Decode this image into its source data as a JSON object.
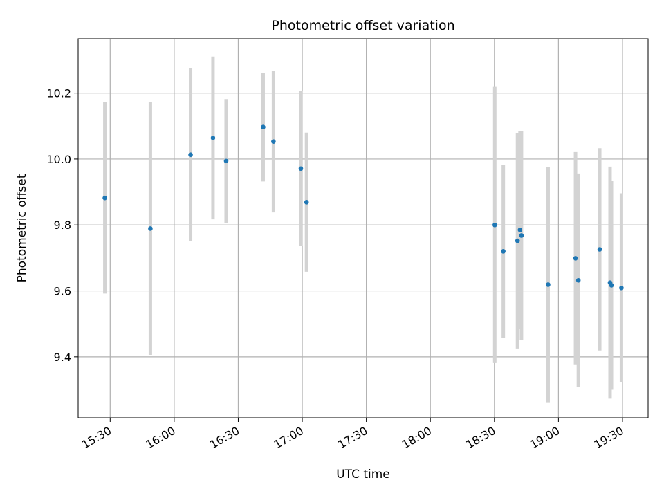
{
  "chart_data": {
    "type": "scatter",
    "title": "Photometric offset variation",
    "xlabel": "UTC time",
    "ylabel": "Photometric offset",
    "xlim": [
      "15:15",
      "19:42"
    ],
    "ylim": [
      9.215,
      10.365
    ],
    "x_ticks": [
      "15:30",
      "16:00",
      "16:30",
      "17:00",
      "17:30",
      "18:00",
      "18:30",
      "19:00",
      "19:30"
    ],
    "y_ticks": [
      9.4,
      9.6,
      9.8,
      10.0,
      10.2
    ],
    "grid": true,
    "colors": {
      "point": "#1f77b4",
      "errorbar": "#d3d3d3",
      "grid": "#b0b0b0"
    },
    "points": [
      {
        "x": "15:27:30",
        "y": 9.882,
        "err": 0.29
      },
      {
        "x": "15:48:50",
        "y": 9.789,
        "err": 0.383
      },
      {
        "x": "16:07:40",
        "y": 10.013,
        "err": 0.262
      },
      {
        "x": "16:18:10",
        "y": 10.064,
        "err": 0.247
      },
      {
        "x": "16:24:20",
        "y": 9.994,
        "err": 0.188
      },
      {
        "x": "16:41:40",
        "y": 10.097,
        "err": 0.165
      },
      {
        "x": "16:46:30",
        "y": 10.053,
        "err": 0.215
      },
      {
        "x": "16:59:20",
        "y": 9.971,
        "err": 0.235
      },
      {
        "x": "17:02:00",
        "y": 9.869,
        "err": 0.211
      },
      {
        "x": "18:30:10",
        "y": 9.8,
        "err": 0.419
      },
      {
        "x": "18:34:10",
        "y": 9.72,
        "err": 0.263
      },
      {
        "x": "18:40:50",
        "y": 9.752,
        "err": 0.327
      },
      {
        "x": "18:42:00",
        "y": 9.785,
        "err": 0.3
      },
      {
        "x": "18:42:40",
        "y": 9.768,
        "err": 0.316
      },
      {
        "x": "18:55:10",
        "y": 9.619,
        "err": 0.357
      },
      {
        "x": "19:08:00",
        "y": 9.699,
        "err": 0.322
      },
      {
        "x": "19:09:20",
        "y": 9.632,
        "err": 0.324
      },
      {
        "x": "19:19:20",
        "y": 9.726,
        "err": 0.307
      },
      {
        "x": "19:24:10",
        "y": 9.625,
        "err": 0.352
      },
      {
        "x": "19:24:50",
        "y": 9.617,
        "err": 0.317
      },
      {
        "x": "19:29:30",
        "y": 9.609,
        "err": 0.287
      }
    ]
  }
}
